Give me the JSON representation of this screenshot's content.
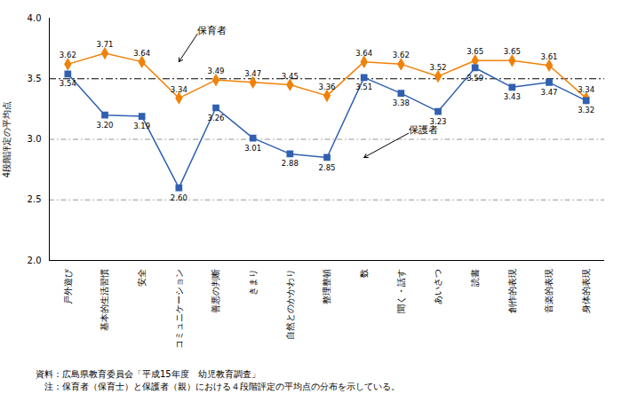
{
  "chart_data": {
    "type": "line",
    "categories": [
      "戸外遊び",
      "基本的生活習慣",
      "安全",
      "コミュニケーション",
      "善悪の判断",
      "きまり",
      "自然とのかかわり",
      "整理整頓",
      "数",
      "聞く・話す",
      "あいさつ",
      "読書",
      "創作的表現",
      "音楽的表現",
      "身体的表現"
    ],
    "series": [
      {
        "name": "保育者",
        "color": "#F0820A",
        "marker": "diamond",
        "values": [
          3.62,
          3.71,
          3.64,
          3.34,
          3.49,
          3.47,
          3.45,
          3.36,
          3.64,
          3.62,
          3.52,
          3.65,
          3.65,
          3.61,
          3.34
        ],
        "value_labels": [
          "3.62",
          "3.71",
          "3.64",
          "3.34",
          "3.49",
          "3.47",
          "3.45",
          "3.36",
          "3.64",
          "3.62",
          "3.52",
          "3.65",
          "3.65",
          "3.61",
          "3.34"
        ]
      },
      {
        "name": "保護者",
        "color": "#3060B0",
        "marker": "square",
        "values": [
          3.54,
          3.2,
          3.19,
          2.6,
          3.26,
          3.01,
          2.88,
          2.85,
          3.51,
          3.38,
          3.23,
          3.59,
          3.43,
          3.47,
          3.32
        ],
        "value_labels": [
          "3.54",
          "3.20",
          "3.19",
          "2.60",
          "3.26",
          "3.01",
          "2.88",
          "2.85",
          "3.51",
          "3.38",
          "3.23",
          "3.59",
          "3.43",
          "3.47",
          "3.32"
        ]
      }
    ],
    "data_labels": true,
    "ylabel": "4段階評定の平均点",
    "ylim": [
      2.0,
      4.0
    ],
    "yticks": [
      {
        "value": 2.0,
        "label": "2.0"
      },
      2.5,
      {
        "value": 3.0,
        "label": "3.0"
      },
      3.5,
      {
        "value": 4.0,
        "label": "4.0"
      }
    ],
    "grid": false,
    "hline": 3.5,
    "guide_lines": [
      2.5,
      3.0
    ],
    "annotations": [
      {
        "text": "保育者",
        "x": 3.5,
        "y": 3.87,
        "arrow_x": 3,
        "arrow_y": 3.64
      },
      {
        "text": "保護者",
        "x": 9.2,
        "y": 3.05,
        "arrow_x": 8,
        "arrow_y": 2.85
      }
    ],
    "source": [
      "資料：広島県教育委員会「平成15年度　幼児教育調査」",
      "　注：保育者（保育士）と保護者（親）における４段階評定の平均点の分布を示している。"
    ]
  }
}
